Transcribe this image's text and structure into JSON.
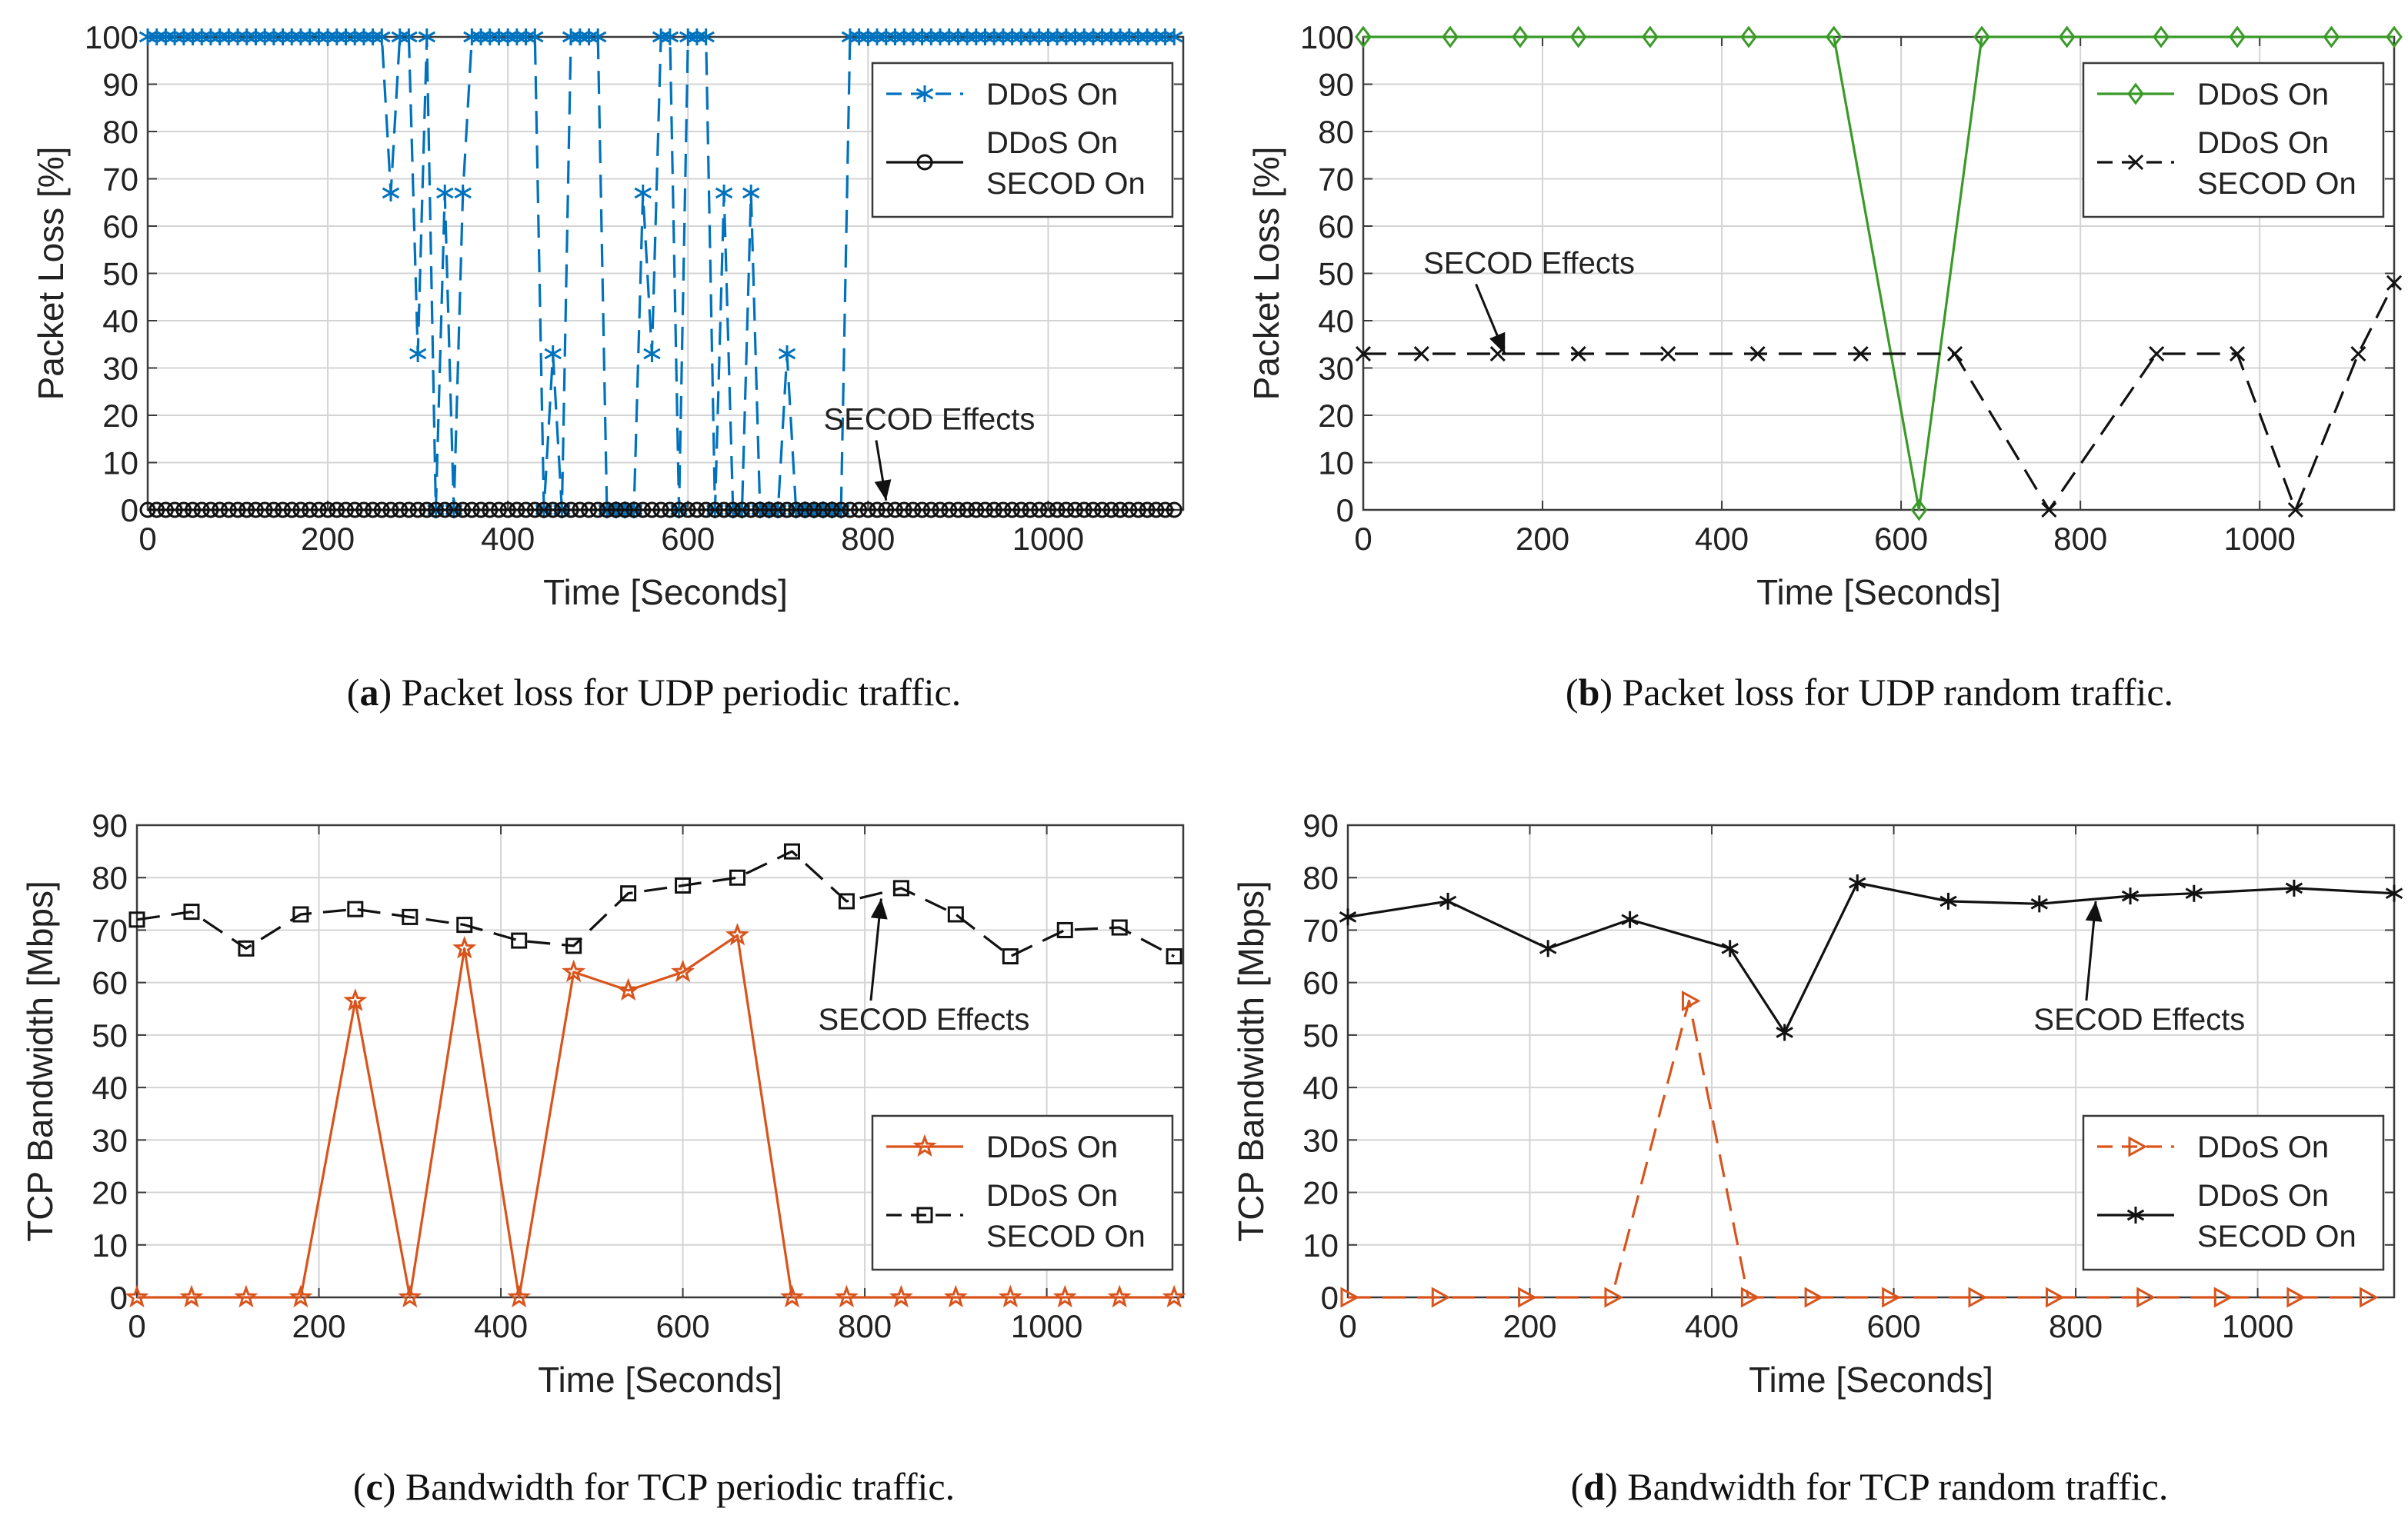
{
  "colors": {
    "blue": "#0072bd",
    "green": "#3a9a28",
    "orange": "#d9541c",
    "black": "#111111",
    "grid": "#d4d4d4",
    "axis": "#3a3a3a"
  },
  "chart_data": [
    {
      "type": "line",
      "panel": "a",
      "caption": {
        "letter": "a",
        "text": " Packet loss for UDP periodic traffic."
      },
      "xlabel": "Time [Seconds]",
      "ylabel": "Packet Loss [%]",
      "xlim": [
        0,
        1150
      ],
      "ylim": [
        0,
        100
      ],
      "xticks": [
        0,
        200,
        400,
        600,
        800,
        1000
      ],
      "yticks": [
        0,
        10,
        20,
        30,
        40,
        50,
        60,
        70,
        80,
        90,
        100
      ],
      "grid": true,
      "legend_position": "top-right",
      "series": [
        {
          "name": "DDoS On",
          "legend_lines": [
            "DDoS On"
          ],
          "color": "#0072bd",
          "dash": "dashed",
          "marker": "asterisk",
          "x": [
            0,
            10,
            20,
            30,
            40,
            50,
            60,
            70,
            80,
            90,
            100,
            110,
            120,
            130,
            140,
            150,
            160,
            170,
            180,
            190,
            200,
            210,
            220,
            230,
            240,
            250,
            260,
            270,
            280,
            290,
            300,
            310,
            320,
            330,
            340,
            350,
            360,
            370,
            380,
            390,
            400,
            410,
            420,
            430,
            440,
            450,
            460,
            470,
            480,
            490,
            500,
            510,
            520,
            530,
            540,
            550,
            560,
            570,
            580,
            590,
            600,
            610,
            620,
            630,
            640,
            650,
            660,
            670,
            680,
            690,
            700,
            710,
            720,
            730,
            740,
            750,
            760,
            770,
            780,
            790,
            800,
            810,
            820,
            830,
            840,
            850,
            860,
            870,
            880,
            890,
            900,
            910,
            920,
            930,
            940,
            950,
            960,
            970,
            980,
            990,
            1000,
            1010,
            1020,
            1030,
            1040,
            1050,
            1060,
            1070,
            1080,
            1090,
            1100,
            1110,
            1120,
            1130,
            1140
          ],
          "y": [
            100,
            100,
            100,
            100,
            100,
            100,
            100,
            100,
            100,
            100,
            100,
            100,
            100,
            100,
            100,
            100,
            100,
            100,
            100,
            100,
            100,
            100,
            100,
            100,
            100,
            100,
            100,
            67,
            100,
            100,
            33,
            100,
            0,
            67,
            0,
            67,
            100,
            100,
            100,
            100,
            100,
            100,
            100,
            100,
            0,
            33,
            0,
            100,
            100,
            100,
            100,
            0,
            0,
            0,
            0,
            67,
            33,
            100,
            100,
            0,
            100,
            100,
            100,
            0,
            67,
            0,
            0,
            67,
            0,
            0,
            0,
            33,
            0,
            0,
            0,
            0,
            0,
            0,
            100,
            100,
            100,
            100,
            100,
            100,
            100,
            100,
            100,
            100,
            100,
            100,
            100,
            100,
            100,
            100,
            100,
            100,
            100,
            100,
            100,
            100,
            100,
            100,
            100,
            100,
            100,
            100,
            100,
            100,
            100,
            100,
            100,
            100,
            100,
            100,
            100
          ]
        },
        {
          "name": "DDoS On SECOD On",
          "legend_lines": [
            "DDoS On",
            "SECOD On"
          ],
          "color": "#111111",
          "dash": "solid",
          "marker": "circle",
          "x": [
            0,
            10,
            20,
            30,
            40,
            50,
            60,
            70,
            80,
            90,
            100,
            110,
            120,
            130,
            140,
            150,
            160,
            170,
            180,
            190,
            200,
            210,
            220,
            230,
            240,
            250,
            260,
            270,
            280,
            290,
            300,
            310,
            320,
            330,
            340,
            350,
            360,
            370,
            380,
            390,
            400,
            410,
            420,
            430,
            440,
            450,
            460,
            470,
            480,
            490,
            500,
            510,
            520,
            530,
            540,
            550,
            560,
            570,
            580,
            590,
            600,
            610,
            620,
            630,
            640,
            650,
            660,
            670,
            680,
            690,
            700,
            710,
            720,
            730,
            740,
            750,
            760,
            770,
            780,
            790,
            800,
            810,
            820,
            830,
            840,
            850,
            860,
            870,
            880,
            890,
            900,
            910,
            920,
            930,
            940,
            950,
            960,
            970,
            980,
            990,
            1000,
            1010,
            1020,
            1030,
            1040,
            1050,
            1060,
            1070,
            1080,
            1090,
            1100,
            1110,
            1120,
            1130,
            1140
          ],
          "y": [
            0,
            0,
            0,
            0,
            0,
            0,
            0,
            0,
            0,
            0,
            0,
            0,
            0,
            0,
            0,
            0,
            0,
            0,
            0,
            0,
            0,
            0,
            0,
            0,
            0,
            0,
            0,
            0,
            0,
            0,
            0,
            0,
            0,
            0,
            0,
            0,
            0,
            0,
            0,
            0,
            0,
            0,
            0,
            0,
            0,
            0,
            0,
            0,
            0,
            0,
            0,
            0,
            0,
            0,
            0,
            0,
            0,
            0,
            0,
            0,
            0,
            0,
            0,
            0,
            0,
            0,
            0,
            0,
            0,
            0,
            0,
            0,
            0,
            0,
            0,
            0,
            0,
            0,
            0,
            0,
            0,
            0,
            0,
            0,
            0,
            0,
            0,
            0,
            0,
            0,
            0,
            0,
            0,
            0,
            0,
            0,
            0,
            0,
            0,
            0,
            0,
            0,
            0,
            0,
            0,
            0,
            0,
            0,
            0,
            0,
            0,
            0,
            0,
            0,
            0
          ]
        }
      ],
      "annotation": {
        "text": "SECOD Effects",
        "text_at": [
          868,
          17
        ],
        "arrow_to": [
          820,
          2
        ]
      }
    },
    {
      "type": "line",
      "panel": "b",
      "caption": {
        "letter": "b",
        "text": " Packet loss for UDP random traffic."
      },
      "xlabel": "Time [Seconds]",
      "ylabel": "Packet Loss [%]",
      "xlim": [
        0,
        1150
      ],
      "ylim": [
        0,
        100
      ],
      "xticks": [
        0,
        200,
        400,
        600,
        800,
        1000
      ],
      "yticks": [
        0,
        10,
        20,
        30,
        40,
        50,
        60,
        70,
        80,
        90,
        100
      ],
      "grid": true,
      "legend_position": "top-right",
      "series": [
        {
          "name": "DDoS On",
          "legend_lines": [
            "DDoS On"
          ],
          "color": "#3a9a28",
          "dash": "solid",
          "marker": "diamond",
          "x": [
            0,
            97,
            175,
            240,
            320,
            430,
            525,
            620,
            690,
            785,
            890,
            975,
            1080,
            1150
          ],
          "y": [
            100,
            100,
            100,
            100,
            100,
            100,
            100,
            0,
            100,
            100,
            100,
            100,
            100,
            100
          ]
        },
        {
          "name": "DDoS On SECOD On",
          "legend_lines": [
            "DDoS On",
            "SECOD On"
          ],
          "color": "#111111",
          "dash": "dashed",
          "marker": "x",
          "x": [
            0,
            65,
            150,
            240,
            340,
            440,
            555,
            660,
            765,
            885,
            975,
            1040,
            1110,
            1150
          ],
          "y": [
            33,
            33,
            33,
            33,
            33,
            33,
            33,
            33,
            0,
            33,
            33,
            0,
            33,
            48
          ]
        }
      ],
      "annotation": {
        "text": "SECOD Effects",
        "text_at": [
          185,
          50
        ],
        "arrow_to": [
          158,
          33
        ]
      }
    },
    {
      "type": "line",
      "panel": "c",
      "caption": {
        "letter": "c",
        "text": " Bandwidth for TCP periodic traffic."
      },
      "xlabel": "Time [Seconds]",
      "ylabel": "TCP Bandwidth [Mbps]",
      "xlim": [
        0,
        1150
      ],
      "ylim": [
        0,
        90
      ],
      "xticks": [
        0,
        200,
        400,
        600,
        800,
        1000
      ],
      "yticks": [
        0,
        10,
        20,
        30,
        40,
        50,
        60,
        70,
        80,
        90
      ],
      "grid": true,
      "legend_position": "bottom-right",
      "series": [
        {
          "name": "DDoS On",
          "legend_lines": [
            "DDoS On"
          ],
          "color": "#d9541c",
          "dash": "solid",
          "marker": "star",
          "x": [
            0,
            60,
            120,
            180,
            240,
            300,
            360,
            420,
            480,
            540,
            600,
            660,
            720,
            780,
            840,
            900,
            960,
            1020,
            1080,
            1140
          ],
          "y": [
            0,
            0,
            0,
            0,
            56.5,
            0,
            66.5,
            0,
            62,
            58.5,
            62,
            69,
            0,
            0,
            0,
            0,
            0,
            0,
            0,
            0
          ]
        },
        {
          "name": "DDoS On SECOD On",
          "legend_lines": [
            "DDoS On",
            "SECOD On"
          ],
          "color": "#111111",
          "dash": "dashed",
          "marker": "square",
          "x": [
            0,
            60,
            120,
            180,
            240,
            300,
            360,
            420,
            480,
            540,
            600,
            660,
            720,
            780,
            840,
            900,
            960,
            1020,
            1080,
            1140
          ],
          "y": [
            72,
            73.5,
            66.5,
            73,
            74,
            72.5,
            71,
            68,
            67,
            77,
            78.5,
            80,
            85,
            75.5,
            78,
            73,
            65,
            70,
            70.5,
            65
          ]
        }
      ],
      "annotation": {
        "text": "SECOD Effects",
        "text_at": [
          865,
          51
        ],
        "arrow_to": [
          818,
          76
        ]
      }
    },
    {
      "type": "line",
      "panel": "d",
      "caption": {
        "letter": "d",
        "text": " Bandwidth for TCP random traffic."
      },
      "xlabel": "Time [Seconds]",
      "ylabel": "TCP Bandwidth [Mbps]",
      "xlim": [
        0,
        1150
      ],
      "ylim": [
        0,
        90
      ],
      "xticks": [
        0,
        200,
        400,
        600,
        800,
        1000
      ],
      "yticks": [
        0,
        10,
        20,
        30,
        40,
        50,
        60,
        70,
        80,
        90
      ],
      "grid": true,
      "legend_position": "bottom-right",
      "series": [
        {
          "name": "DDoS On",
          "legend_lines": [
            "DDoS On"
          ],
          "color": "#d9541c",
          "dash": "dashed",
          "marker": "triangle-right",
          "x": [
            0,
            100,
            195,
            290,
            375,
            440,
            510,
            595,
            690,
            775,
            875,
            960,
            1040,
            1120
          ],
          "y": [
            0,
            0,
            0,
            0,
            56.5,
            0,
            0,
            0,
            0,
            0,
            0,
            0,
            0,
            0
          ]
        },
        {
          "name": "DDoS On SECOD On",
          "legend_lines": [
            "DDoS On",
            "SECOD On"
          ],
          "color": "#111111",
          "dash": "solid",
          "marker": "asterisk",
          "x": [
            0,
            110,
            220,
            310,
            420,
            480,
            560,
            660,
            760,
            860,
            930,
            1040,
            1150
          ],
          "y": [
            72.5,
            75.5,
            66.5,
            72,
            66.5,
            50.5,
            79,
            75.5,
            75,
            76.5,
            77,
            78,
            77
          ]
        }
      ],
      "annotation": {
        "text": "SECOD Effects",
        "text_at": [
          870,
          51
        ],
        "arrow_to": [
          822,
          75.5
        ]
      }
    }
  ]
}
